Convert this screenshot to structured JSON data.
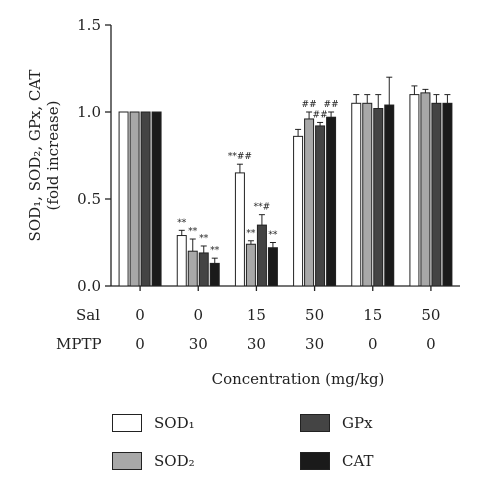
{
  "chart_data": {
    "type": "bar",
    "ylabel_lines": [
      "SOD₁, SOD₂, GPx, CAT",
      "(fold increase)"
    ],
    "xlabel": "Concentration (mg/kg)",
    "ylim": [
      0,
      1.5
    ],
    "yticks": [
      "0.0",
      "0.5",
      "1.0",
      "1.5"
    ],
    "grid": false,
    "legend_position": "bottom",
    "row_labels": [
      "Sal",
      "MPTP"
    ],
    "groups": [
      {
        "sal": "0",
        "mptp": "0"
      },
      {
        "sal": "0",
        "mptp": "30"
      },
      {
        "sal": "15",
        "mptp": "30"
      },
      {
        "sal": "50",
        "mptp": "30"
      },
      {
        "sal": "15",
        "mptp": "0"
      },
      {
        "sal": "50",
        "mptp": "0"
      }
    ],
    "series": [
      {
        "name": "SOD₁",
        "color": "#ffffff",
        "values": [
          1.0,
          0.29,
          0.65,
          0.86,
          1.05,
          1.1
        ],
        "errors": [
          0,
          0.03,
          0.05,
          0.04,
          0.05,
          0.05
        ],
        "annotations": [
          "",
          "**",
          "**##",
          "",
          "",
          ""
        ]
      },
      {
        "name": "SOD₂",
        "color": "#a8a8a8",
        "values": [
          1.0,
          0.2,
          0.24,
          0.96,
          1.05,
          1.11
        ],
        "errors": [
          0,
          0.07,
          0.02,
          0.04,
          0.05,
          0.02
        ],
        "annotations": [
          "",
          "**",
          "**",
          "##",
          "",
          ""
        ]
      },
      {
        "name": "GPx",
        "color": "#444444",
        "values": [
          1.0,
          0.19,
          0.35,
          0.92,
          1.02,
          1.05
        ],
        "errors": [
          0,
          0.04,
          0.06,
          0.02,
          0.08,
          0.05
        ],
        "annotations": [
          "",
          "**",
          "**#",
          "##",
          "",
          ""
        ]
      },
      {
        "name": "CAT",
        "color": "#1a1a1a",
        "values": [
          1.0,
          0.13,
          0.22,
          0.97,
          1.04,
          1.05
        ],
        "errors": [
          0,
          0.03,
          0.03,
          0.03,
          0.16,
          0.05
        ],
        "annotations": [
          "",
          "**",
          "**",
          "##",
          "",
          ""
        ]
      }
    ]
  }
}
